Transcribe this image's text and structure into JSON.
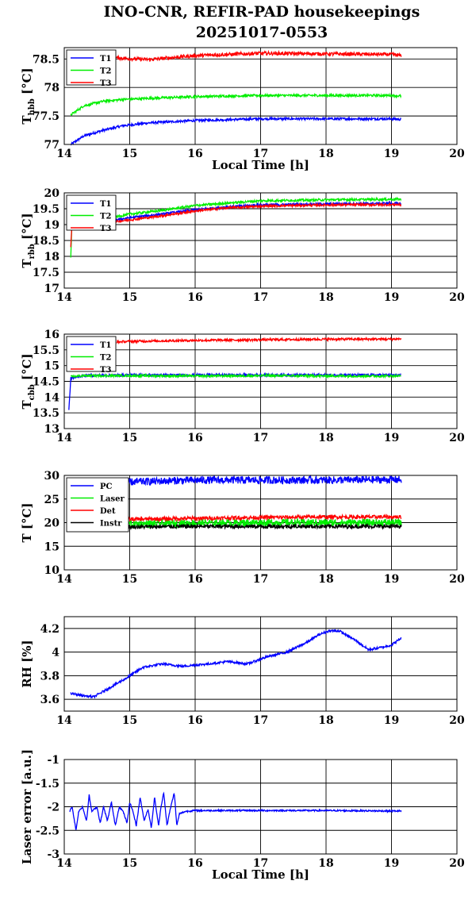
{
  "figure": {
    "title_line1": "INO-CNR, REFIR-PAD housekeepings",
    "title_line2": "20251017-0553"
  },
  "chart_data": [
    {
      "type": "line",
      "ylabel": {
        "main": "T",
        "sub": "hbb",
        "unit": " [°C]"
      },
      "xlabel": "Local Time [h]",
      "xlim": [
        14,
        20
      ],
      "ylim": [
        77,
        78.7
      ],
      "xticks": [
        14,
        15,
        16,
        17,
        18,
        19,
        20
      ],
      "yticks": [
        77,
        77.5,
        78,
        78.5
      ],
      "grid": true,
      "legend": "top-left",
      "series": [
        {
          "name": "T1",
          "color": "#0000ff",
          "x": [
            14.1,
            14.3,
            14.6,
            14.9,
            15.3,
            16,
            17,
            18,
            19,
            19.15
          ],
          "y": [
            77.0,
            77.15,
            77.25,
            77.33,
            77.38,
            77.42,
            77.45,
            77.45,
            77.45,
            77.44
          ],
          "noise": 0.012
        },
        {
          "name": "T2",
          "color": "#00ee00",
          "x": [
            14.1,
            14.3,
            14.6,
            14.9,
            15.3,
            16,
            17,
            18,
            19,
            19.15
          ],
          "y": [
            77.52,
            77.68,
            77.76,
            77.79,
            77.81,
            77.84,
            77.86,
            77.86,
            77.86,
            77.85
          ],
          "noise": 0.012
        },
        {
          "name": "T3",
          "color": "#ff0000",
          "x": [
            14.45,
            14.8,
            15.1,
            15.3,
            16,
            17,
            18,
            19,
            19.15
          ],
          "y": [
            78.5,
            78.52,
            78.5,
            78.49,
            78.56,
            78.6,
            78.59,
            78.58,
            78.56
          ],
          "noise": 0.018
        }
      ]
    },
    {
      "type": "line",
      "ylabel": {
        "main": "T",
        "sub": "rbb",
        "unit": " [°C]"
      },
      "xlabel": "",
      "xlim": [
        14,
        20
      ],
      "ylim": [
        17,
        20
      ],
      "xticks": [
        14,
        15,
        16,
        17,
        18,
        19,
        20
      ],
      "yticks": [
        17,
        17.5,
        18,
        18.5,
        19,
        19.5,
        20
      ],
      "grid": true,
      "legend": "top-left",
      "series": [
        {
          "name": "T1",
          "color": "#0000ff",
          "x": [
            14.12,
            14.3,
            14.8,
            15,
            15.5,
            16,
            16.5,
            17,
            18,
            19,
            19.15
          ],
          "y": [
            19.1,
            19.1,
            19.15,
            19.22,
            19.33,
            19.47,
            19.56,
            19.62,
            19.65,
            19.67,
            19.66
          ],
          "noise": 0.012
        },
        {
          "name": "T2",
          "color": "#00ee00",
          "x": [
            14.1,
            14.12,
            14.3,
            14.8,
            15,
            15.5,
            16,
            16.5,
            17,
            18,
            19,
            19.15
          ],
          "y": [
            17.95,
            19.2,
            19.2,
            19.25,
            19.33,
            19.45,
            19.6,
            19.68,
            19.75,
            19.78,
            19.8,
            19.8
          ],
          "noise": 0.012
        },
        {
          "name": "T3",
          "color": "#ff0000",
          "x": [
            14.1,
            14.12,
            14.3,
            14.8,
            15,
            15.5,
            16,
            16.5,
            17,
            18,
            19,
            19.15
          ],
          "y": [
            18.3,
            19.05,
            19.08,
            19.1,
            19.15,
            19.28,
            19.43,
            19.53,
            19.58,
            19.62,
            19.63,
            19.63
          ],
          "noise": 0.012
        }
      ]
    },
    {
      "type": "line",
      "ylabel": {
        "main": "T",
        "sub": "cbb",
        "unit": " [°C]"
      },
      "xlabel": "",
      "xlim": [
        14,
        20
      ],
      "ylim": [
        13,
        16
      ],
      "xticks": [
        14,
        15,
        16,
        17,
        18,
        19,
        20
      ],
      "yticks": [
        13,
        13.5,
        14,
        14.5,
        15,
        15.5,
        16
      ],
      "grid": true,
      "legend": "top-left",
      "series": [
        {
          "name": "T1",
          "color": "#0000ff",
          "x": [
            14.07,
            14.1,
            14.3,
            15,
            16,
            17,
            18,
            19,
            19.15
          ],
          "y": [
            13.6,
            14.6,
            14.68,
            14.7,
            14.7,
            14.7,
            14.7,
            14.7,
            14.7
          ],
          "noise": 0.012
        },
        {
          "name": "T2",
          "color": "#00ee00",
          "x": [
            14.1,
            14.3,
            15,
            16,
            17,
            18,
            19,
            19.15
          ],
          "y": [
            14.65,
            14.68,
            14.68,
            14.67,
            14.68,
            14.67,
            14.67,
            14.67
          ],
          "noise": 0.012
        },
        {
          "name": "T3",
          "color": "#ff0000",
          "x": [
            14.8,
            15,
            16,
            17,
            18,
            19,
            19.15
          ],
          "y": [
            15.75,
            15.77,
            15.8,
            15.82,
            15.84,
            15.84,
            15.85
          ],
          "noise": 0.012
        }
      ]
    },
    {
      "type": "line",
      "ylabel": {
        "main": "T [°C]",
        "sub": "",
        "unit": ""
      },
      "xlabel": "",
      "xlim": [
        14,
        20
      ],
      "ylim": [
        10,
        30
      ],
      "xticks": [
        14,
        15,
        16,
        17,
        18,
        19,
        20
      ],
      "yticks": [
        10,
        15,
        20,
        25,
        30
      ],
      "grid": true,
      "legend": "top-left",
      "series": [
        {
          "name": "PC",
          "color": "#0000ff",
          "x": [
            14.8,
            15,
            15.5,
            16,
            17,
            18,
            19,
            19.15
          ],
          "y": [
            28.4,
            28.6,
            28.8,
            29.0,
            29.0,
            29.0,
            29.1,
            29.1
          ],
          "noise": 0.04
        },
        {
          "name": "Laser",
          "color": "#00ee00",
          "x": [
            14.8,
            15,
            16,
            17,
            18,
            19,
            19.15
          ],
          "y": [
            19.6,
            19.7,
            19.9,
            20.0,
            20.0,
            20.0,
            20.0
          ],
          "noise": 0.04
        },
        {
          "name": "Det",
          "color": "#ff0000",
          "x": [
            14.8,
            15,
            16,
            17,
            18,
            19,
            19.15
          ],
          "y": [
            20.6,
            20.7,
            20.9,
            21.1,
            21.2,
            21.2,
            21.2
          ],
          "noise": 0.02
        },
        {
          "name": "Instr",
          "color": "#000000",
          "x": [
            14.8,
            15,
            16,
            17,
            18,
            19,
            19.15
          ],
          "y": [
            19.1,
            19.1,
            19.2,
            19.2,
            19.2,
            19.2,
            19.2
          ],
          "noise": 0.02
        }
      ]
    },
    {
      "type": "line",
      "ylabel": {
        "main": "RH [%]",
        "sub": "",
        "unit": ""
      },
      "xlabel": "",
      "xlim": [
        14,
        20
      ],
      "ylim": [
        3.5,
        4.3
      ],
      "xticks": [
        14,
        15,
        16,
        17,
        18,
        19,
        20
      ],
      "yticks": [
        3.6,
        3.8,
        4,
        4.2
      ],
      "grid": true,
      "legend": "none",
      "series": [
        {
          "name": "",
          "color": "#0000ff",
          "x": [
            14.1,
            14.3,
            14.45,
            14.7,
            14.95,
            15.2,
            15.5,
            15.8,
            16.2,
            16.5,
            16.8,
            17.1,
            17.4,
            17.7,
            17.9,
            18.05,
            18.2,
            18.45,
            18.65,
            18.85,
            19.0,
            19.15
          ],
          "y": [
            3.65,
            3.63,
            3.62,
            3.7,
            3.78,
            3.87,
            3.9,
            3.88,
            3.9,
            3.92,
            3.9,
            3.96,
            4.0,
            4.08,
            4.15,
            4.18,
            4.18,
            4.1,
            4.02,
            4.04,
            4.06,
            4.12
          ],
          "noise": 0.012
        }
      ]
    },
    {
      "type": "line",
      "ylabel": {
        "main": "Laser error [a.u.]",
        "sub": "",
        "unit": ""
      },
      "xlabel": "Local Time [h]",
      "xlim": [
        14,
        20
      ],
      "ylim": [
        -3,
        -1
      ],
      "xticks": [
        14,
        15,
        16,
        17,
        18,
        19,
        20
      ],
      "yticks": [
        -3,
        -2.5,
        -2,
        -1.5,
        -1
      ],
      "grid": true,
      "legend": "none",
      "series": [
        {
          "name": "",
          "color": "#0000ff",
          "x": [
            14.08,
            14.12,
            14.18,
            14.22,
            14.28,
            14.34,
            14.38,
            14.42,
            14.5,
            14.55,
            14.6,
            14.66,
            14.72,
            14.78,
            14.84,
            14.9,
            14.96,
            15.0,
            15.05,
            15.1,
            15.16,
            15.22,
            15.28,
            15.33,
            15.38,
            15.44,
            15.48,
            15.52,
            15.57,
            15.62,
            15.68,
            15.72,
            15.76,
            15.85,
            16,
            17,
            18,
            19,
            19.15
          ],
          "y": [
            -2.1,
            -2.0,
            -2.5,
            -2.1,
            -2.0,
            -2.3,
            -1.75,
            -2.1,
            -2.0,
            -2.35,
            -2.0,
            -2.3,
            -1.9,
            -2.4,
            -2.0,
            -2.1,
            -2.35,
            -1.9,
            -2.1,
            -2.4,
            -1.8,
            -2.3,
            -2.05,
            -2.45,
            -1.8,
            -2.4,
            -2.0,
            -1.7,
            -2.4,
            -2.05,
            -1.7,
            -2.4,
            -2.15,
            -2.1,
            -2.08,
            -2.08,
            -2.08,
            -2.09,
            -2.09
          ],
          "noise": 0.008
        }
      ]
    }
  ]
}
